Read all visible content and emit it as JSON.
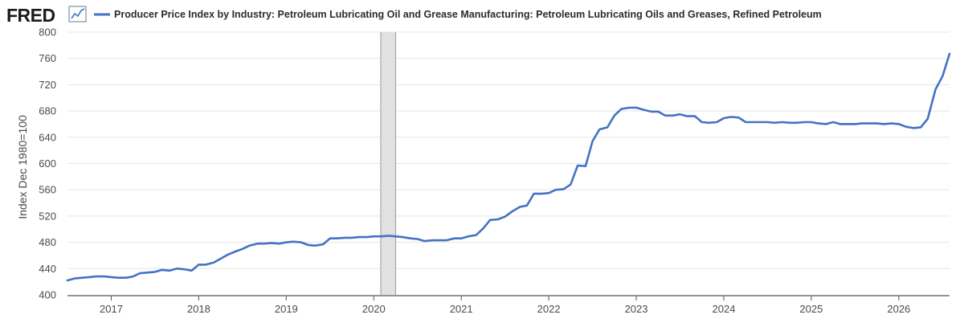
{
  "header": {
    "logo_text": "FRED",
    "logo_icon": "line-chart-icon"
  },
  "colors": {
    "series": "#4472c4",
    "grid": "#e5e5e5",
    "recession": "#e1e1e1",
    "recession_edge": "#9a9a9a",
    "axis": "#555555"
  },
  "chart_data": {
    "type": "line",
    "title": "",
    "xlabel": "",
    "ylabel": "Index Dec 1980=100",
    "ylim": [
      400,
      800
    ],
    "y_ticks": [
      400,
      440,
      480,
      520,
      560,
      600,
      640,
      680,
      720,
      760,
      800
    ],
    "x_range": [
      2016.5,
      2026.58
    ],
    "x_ticks": [
      2017,
      2018,
      2019,
      2020,
      2021,
      2022,
      2023,
      2024,
      2025,
      2026
    ],
    "grid": "horizontal",
    "legend": "top",
    "recession_band": [
      2020.08,
      2020.25
    ],
    "series": [
      {
        "name": "Producer Price Index by Industry: Petroleum Lubricating Oil and Grease Manufacturing: Petroleum Lubricating Oils and Greases, Refined Petroleum",
        "x": [
          2016.5,
          2016.58,
          2016.67,
          2016.75,
          2016.83,
          2016.92,
          2017.0,
          2017.08,
          2017.17,
          2017.25,
          2017.33,
          2017.42,
          2017.5,
          2017.58,
          2017.67,
          2017.75,
          2017.83,
          2017.92,
          2018.0,
          2018.08,
          2018.17,
          2018.25,
          2018.33,
          2018.42,
          2018.5,
          2018.58,
          2018.67,
          2018.75,
          2018.83,
          2018.92,
          2019.0,
          2019.08,
          2019.17,
          2019.25,
          2019.33,
          2019.42,
          2019.5,
          2019.58,
          2019.67,
          2019.75,
          2019.83,
          2019.92,
          2020.0,
          2020.08,
          2020.17,
          2020.25,
          2020.33,
          2020.42,
          2020.5,
          2020.58,
          2020.67,
          2020.75,
          2020.83,
          2020.92,
          2021.0,
          2021.08,
          2021.17,
          2021.25,
          2021.33,
          2021.42,
          2021.5,
          2021.58,
          2021.67,
          2021.75,
          2021.83,
          2021.92,
          2022.0,
          2022.08,
          2022.17,
          2022.25,
          2022.33,
          2022.42,
          2022.5,
          2022.58,
          2022.67,
          2022.75,
          2022.83,
          2022.92,
          2023.0,
          2023.08,
          2023.17,
          2023.25,
          2023.33,
          2023.42,
          2023.5,
          2023.58,
          2023.67,
          2023.75,
          2023.83,
          2023.92,
          2024.0,
          2024.08,
          2024.17,
          2024.25,
          2024.33,
          2024.42,
          2024.5,
          2024.58,
          2024.67,
          2024.75,
          2024.83,
          2024.92,
          2025.0,
          2025.08,
          2025.17,
          2025.25,
          2025.33,
          2025.42,
          2025.5,
          2025.58,
          2025.67,
          2025.75,
          2025.83,
          2025.92,
          2026.0,
          2026.08,
          2026.17,
          2026.25,
          2026.33,
          2026.42,
          2026.5,
          2026.58
        ],
        "y": [
          422,
          425,
          426,
          427,
          428,
          428,
          427,
          426,
          426,
          428,
          433,
          434,
          435,
          438,
          437,
          440,
          439,
          437,
          446,
          446,
          449,
          455,
          461,
          466,
          470,
          475,
          478,
          478,
          479,
          478,
          480,
          481,
          480,
          476,
          475,
          477,
          486,
          486,
          487,
          487,
          488,
          488,
          489,
          489,
          490,
          489,
          488,
          486,
          485,
          482,
          483,
          483,
          483,
          486,
          486,
          489,
          491,
          501,
          514,
          515,
          519,
          527,
          534,
          536,
          554,
          554,
          555,
          560,
          561,
          568,
          597,
          596,
          634,
          652,
          655,
          673,
          683,
          685,
          685,
          682,
          679,
          679,
          673,
          673,
          675,
          672,
          672,
          663,
          662,
          663,
          669,
          671,
          670,
          663,
          663,
          663,
          663,
          662,
          663,
          662,
          662,
          663,
          663,
          661,
          660,
          663,
          660,
          660,
          660,
          661,
          661,
          661,
          660,
          661,
          660,
          656,
          654,
          655,
          668,
          713,
          733,
          767
        ]
      }
    ]
  }
}
